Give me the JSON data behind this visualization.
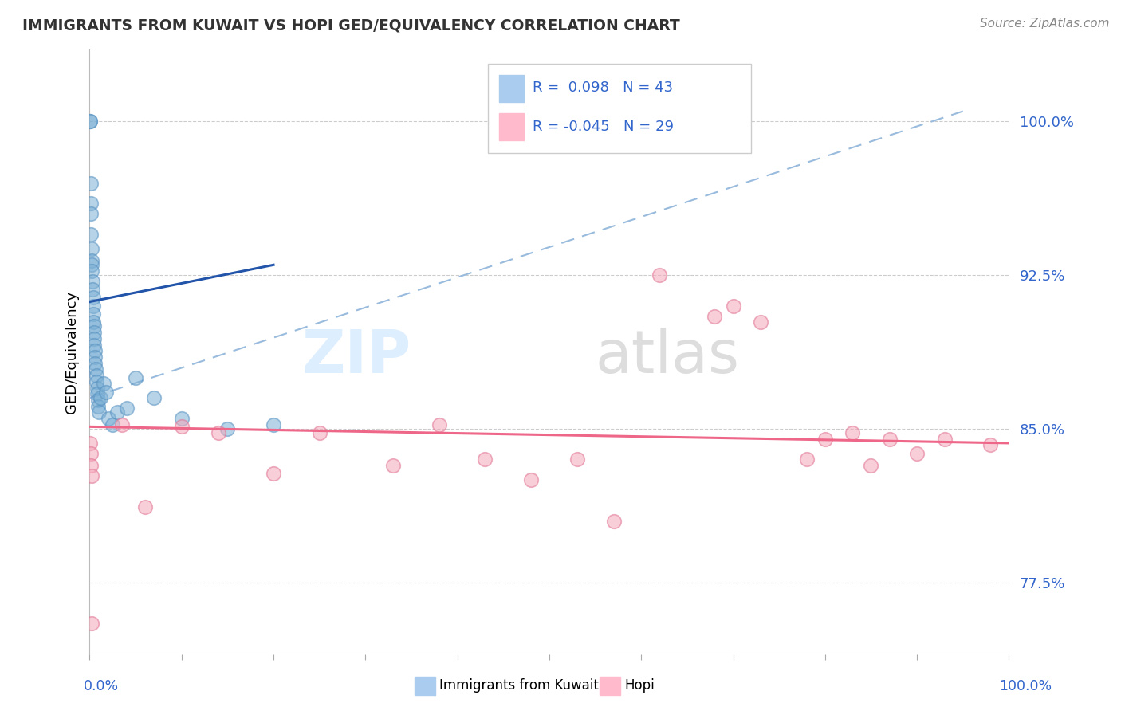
{
  "title": "IMMIGRANTS FROM KUWAIT VS HOPI GED/EQUIVALENCY CORRELATION CHART",
  "source": "Source: ZipAtlas.com",
  "ylabel": "GED/Equivalency",
  "y_ticks": [
    77.5,
    85.0,
    92.5,
    100.0
  ],
  "x_min": 0.0,
  "x_max": 100.0,
  "y_min": 74.0,
  "y_max": 103.5,
  "blue_R": 0.098,
  "blue_N": 43,
  "pink_R": -0.045,
  "pink_N": 29,
  "blue_dot_color": "#7BAFD4",
  "blue_dot_edge": "#5590C0",
  "pink_dot_color": "#F4A7B9",
  "pink_dot_edge": "#E07090",
  "blue_line_color": "#2255AA",
  "pink_line_color": "#EE6688",
  "dashed_line_color": "#99BBDD",
  "grid_color": "#CCCCCC",
  "legend_blue_label": "Immigrants from Kuwait",
  "legend_pink_label": "Hopi",
  "blue_x": [
    0.05,
    0.05,
    0.1,
    0.1,
    0.15,
    0.15,
    0.2,
    0.2,
    0.25,
    0.25,
    0.3,
    0.3,
    0.35,
    0.35,
    0.4,
    0.4,
    0.45,
    0.45,
    0.5,
    0.5,
    0.55,
    0.55,
    0.6,
    0.65,
    0.7,
    0.75,
    0.8,
    0.85,
    0.9,
    0.95,
    1.0,
    1.2,
    1.5,
    1.8,
    2.0,
    2.5,
    3.0,
    4.0,
    5.0,
    7.0,
    10.0,
    15.0,
    20.0
  ],
  "blue_y": [
    100.0,
    100.0,
    97.0,
    96.0,
    95.5,
    94.5,
    93.8,
    93.2,
    93.0,
    92.7,
    92.2,
    91.8,
    91.4,
    91.0,
    90.6,
    90.2,
    90.0,
    89.7,
    89.4,
    89.1,
    88.8,
    88.5,
    88.2,
    87.9,
    87.6,
    87.3,
    87.0,
    86.7,
    86.4,
    86.1,
    85.8,
    86.5,
    87.2,
    86.8,
    85.5,
    85.2,
    85.8,
    86.0,
    87.5,
    86.5,
    85.5,
    85.0,
    85.2
  ],
  "pink_x": [
    0.05,
    0.1,
    0.15,
    0.2,
    0.25,
    3.5,
    6.0,
    10.0,
    14.0,
    20.0,
    25.0,
    33.0,
    38.0,
    43.0,
    48.0,
    53.0,
    57.0,
    62.0,
    68.0,
    70.0,
    73.0,
    78.0,
    80.0,
    83.0,
    85.0,
    87.0,
    90.0,
    93.0,
    98.0
  ],
  "pink_y": [
    84.3,
    83.8,
    83.2,
    82.7,
    75.5,
    85.2,
    81.2,
    85.1,
    84.8,
    82.8,
    84.8,
    83.2,
    85.2,
    83.5,
    82.5,
    83.5,
    80.5,
    92.5,
    90.5,
    91.0,
    90.2,
    83.5,
    84.5,
    84.8,
    83.2,
    84.5,
    83.8,
    84.5,
    84.2
  ],
  "dash_x0": 0.0,
  "dash_x1": 95.0,
  "dash_y0": 86.5,
  "dash_y1": 100.5,
  "blue_line_x0": 0.0,
  "blue_line_x1": 20.0,
  "blue_line_y0": 91.2,
  "blue_line_y1": 93.0,
  "pink_line_x0": 0.0,
  "pink_line_x1": 100.0,
  "pink_line_y0": 85.1,
  "pink_line_y1": 84.3,
  "watermark_zip_x": 35,
  "watermark_zip_y": 88.5,
  "watermark_atlas_x": 55,
  "watermark_atlas_y": 88.5
}
